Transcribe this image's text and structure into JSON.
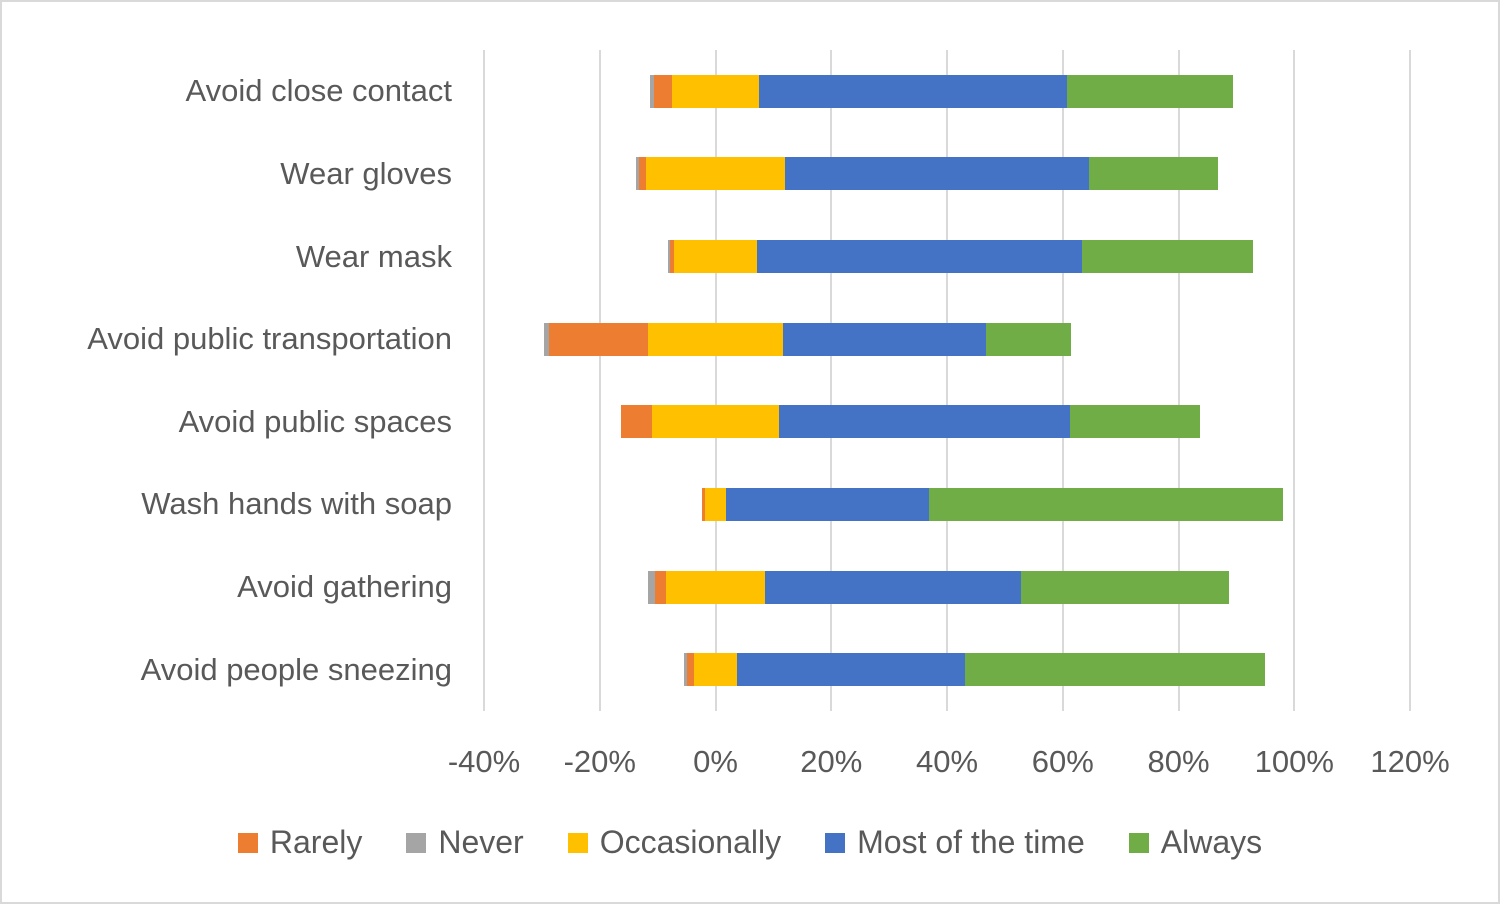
{
  "chart_data": {
    "type": "bar",
    "orientation": "horizontal",
    "variant": "diverging-stacked-likert",
    "title": "",
    "xlabel": "",
    "ylabel": "",
    "categories": [
      "Avoid close contact",
      "Wear gloves",
      "Wear mask",
      "Avoid public transportation",
      "Avoid public spaces",
      "Wash hands with soap",
      "Avoid gathering",
      "Avoid people sneezing"
    ],
    "series": [
      {
        "name": "Rarely",
        "color": "#ED7D31",
        "values": [
          3.2,
          1.3,
          0.7,
          17.1,
          5.4,
          0.6,
          1.9,
          1.3
        ]
      },
      {
        "name": "Never",
        "color": "#A5A5A5",
        "values": [
          0.6,
          0.4,
          0.4,
          0.9,
          0.0,
          0.0,
          1.1,
          0.5
        ]
      },
      {
        "name": "Occasionally",
        "color": "#FFC000",
        "values": [
          15.0,
          24.0,
          14.2,
          23.3,
          22.0,
          3.5,
          17.2,
          7.4
        ]
      },
      {
        "name": "Most of the time",
        "color": "#4472C4",
        "values": [
          53.2,
          52.5,
          56.2,
          35.1,
          50.3,
          35.1,
          44.2,
          39.4
        ]
      },
      {
        "name": "Always",
        "color": "#70AD47",
        "values": [
          28.7,
          22.4,
          29.5,
          14.6,
          22.5,
          61.2,
          35.9,
          51.8
        ]
      }
    ],
    "stacking": {
      "note": "Occasionally is centered on 0%; Never and Rarely extend to the left of it (negative side); Most of the time and Always extend to the right.",
      "visual_order_left_to_right": [
        "Never",
        "Rarely",
        "Occasionally",
        "Most of the time",
        "Always"
      ]
    },
    "x_axis": {
      "min": -40,
      "max": 120,
      "ticks": [
        -40,
        -20,
        0,
        20,
        40,
        60,
        80,
        100,
        120
      ],
      "tick_labels": [
        "-40%",
        "-20%",
        "0%",
        "20%",
        "40%",
        "60%",
        "80%",
        "100%",
        "120%"
      ],
      "gridlines": true
    },
    "legend": {
      "position": "bottom",
      "items": [
        "Rarely",
        "Never",
        "Occasionally",
        "Most of the time",
        "Always"
      ]
    },
    "colors": {
      "gridline": "#D9D9D9",
      "text": "#595959",
      "border": "#D9D9D9",
      "background": "#FFFFFF"
    }
  }
}
